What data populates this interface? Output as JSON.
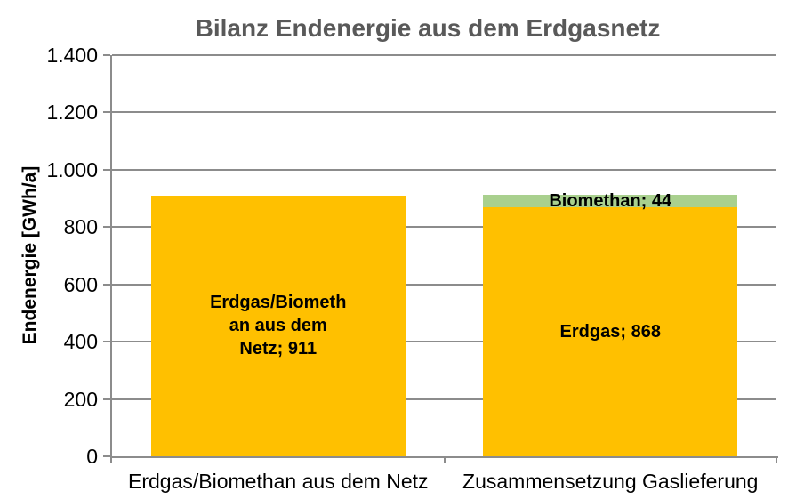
{
  "window": {
    "background": "#FFFFFF"
  },
  "colors": {
    "bar_yellow": "#FFC000",
    "bar_green": "#A9D08E",
    "title_gray": "#595959",
    "axis_gray": "#8C8C8C",
    "label_black": "#000000"
  },
  "chart_data": {
    "type": "bar",
    "stacked": true,
    "title": "Bilanz Endenergie aus dem Erdgasnetz",
    "ylabel": "Endenergie [GWh/a]",
    "xlabel": "",
    "unit": "GWh/a",
    "ylim": [
      0,
      1400
    ],
    "ytick_interval": 200,
    "ytick_labels": [
      "0",
      "200",
      "400",
      "600",
      "800",
      "1.000",
      "1.200",
      "1.400"
    ],
    "grid": {
      "horizontal": true,
      "vertical": false
    },
    "legend_position": "none",
    "categories": [
      "Erdgas/Biomethan aus dem Netz",
      "Zusammensetzung Gaslieferung"
    ],
    "series": [
      {
        "name": "Erdgas/Biomethan aus dem Netz",
        "color": "#FFC000",
        "values": [
          911,
          0
        ]
      },
      {
        "name": "Erdgas",
        "color": "#FFC000",
        "values": [
          0,
          868
        ]
      },
      {
        "name": "Biomethan",
        "color": "#A9D08E",
        "values": [
          0,
          44
        ]
      }
    ],
    "bars": [
      {
        "category": "Erdgas/Biomethan aus dem Netz",
        "segments": [
          {
            "name": "Erdgas/Biomethan aus dem Netz",
            "value": 911,
            "color": "#FFC000",
            "label": "Erdgas/Biomethan aus dem Netz; 911",
            "label_lines": [
              "Erdgas/Biometh",
              "an aus dem",
              "Netz; 911"
            ]
          }
        ]
      },
      {
        "category": "Zusammensetzung Gaslieferung",
        "segments": [
          {
            "name": "Erdgas",
            "value": 868,
            "color": "#FFC000",
            "label": "Erdgas; 868",
            "label_lines": [
              "Erdgas; 868"
            ]
          },
          {
            "name": "Biomethan",
            "value": 44,
            "color": "#A9D08E",
            "label": "Biomethan; 44",
            "label_lines": [
              "Biomethan; 44"
            ]
          }
        ]
      }
    ]
  }
}
